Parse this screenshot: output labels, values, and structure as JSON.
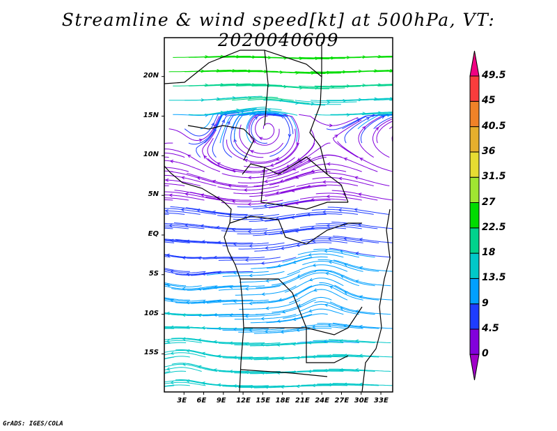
{
  "title": "Streamline & wind speed[kt] at 500hPa, VT: 2020040609",
  "credit": "GrADS: IGES/COLA",
  "map": {
    "lon_range": [
      0,
      34.8
    ],
    "lat_range": [
      -19.8,
      24.9
    ],
    "lon_ticks": [
      {
        "v": 3,
        "label": "3E"
      },
      {
        "v": 6,
        "label": "6E"
      },
      {
        "v": 9,
        "label": "9E"
      },
      {
        "v": 12,
        "label": "12E"
      },
      {
        "v": 15,
        "label": "15E"
      },
      {
        "v": 18,
        "label": "18E"
      },
      {
        "v": 21,
        "label": "21E"
      },
      {
        "v": 24,
        "label": "24E"
      },
      {
        "v": 27,
        "label": "27E"
      },
      {
        "v": 30,
        "label": "30E"
      },
      {
        "v": 33,
        "label": "33E"
      }
    ],
    "lat_ticks": [
      {
        "v": 20,
        "label": "20N"
      },
      {
        "v": 15,
        "label": "15N"
      },
      {
        "v": 10,
        "label": "10N"
      },
      {
        "v": 5,
        "label": "5N"
      },
      {
        "v": 0,
        "label": "EQ"
      },
      {
        "v": -5,
        "label": "5S"
      },
      {
        "v": -10,
        "label": "10S"
      },
      {
        "v": -15,
        "label": "15S"
      }
    ]
  },
  "colorbar": {
    "levels": [
      "0",
      "4.5",
      "9",
      "13.5",
      "18",
      "22.5",
      "27",
      "31.5",
      "36",
      "40.5",
      "45",
      "49.5"
    ],
    "colors": [
      "#a000c8",
      "#8200dc",
      "#1e3cff",
      "#00a0ff",
      "#00c8c8",
      "#00d28c",
      "#00dc00",
      "#a0e632",
      "#e6dc32",
      "#e6af2d",
      "#f08228",
      "#fa3c3c",
      "#f00082"
    ]
  }
}
